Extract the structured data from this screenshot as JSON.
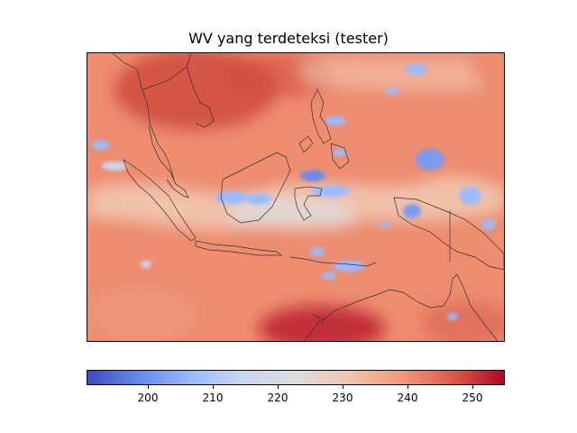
{
  "title": "WV yang terdeteksi (tester)",
  "colormap": {
    "name": "coolwarm",
    "vmin": 190.5,
    "vmax": 255,
    "stops": [
      "#3b4cc0",
      "#6889ee",
      "#9abbff",
      "#c9d7f0",
      "#dddcdc",
      "#f1c6af",
      "#f49a7b",
      "#dc5d4a",
      "#b40426"
    ]
  },
  "colorbar": {
    "ticks": [
      {
        "value": 200,
        "label": "200"
      },
      {
        "value": 210,
        "label": "210"
      },
      {
        "value": 220,
        "label": "220"
      },
      {
        "value": 230,
        "label": "230"
      },
      {
        "value": 240,
        "label": "240"
      },
      {
        "value": 250,
        "label": "250"
      }
    ]
  },
  "map": {
    "background_color": "#ee8d70",
    "coastline_color": "#333333"
  }
}
